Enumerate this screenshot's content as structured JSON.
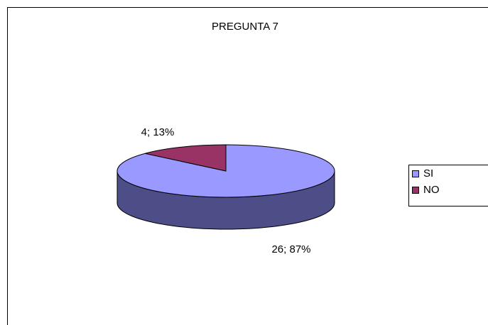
{
  "chart_data": {
    "type": "pie",
    "title": "PREGUNTA 7",
    "categories": [
      "SI",
      "NO"
    ],
    "values": [
      26,
      4
    ],
    "value_labels": [
      "26; 87%",
      "4; 13%"
    ],
    "colors": [
      "#9999ff",
      "#993366"
    ],
    "side_colors": [
      "#4d4d88",
      "#5c1f3d"
    ],
    "legend": "right",
    "three_d": true
  }
}
